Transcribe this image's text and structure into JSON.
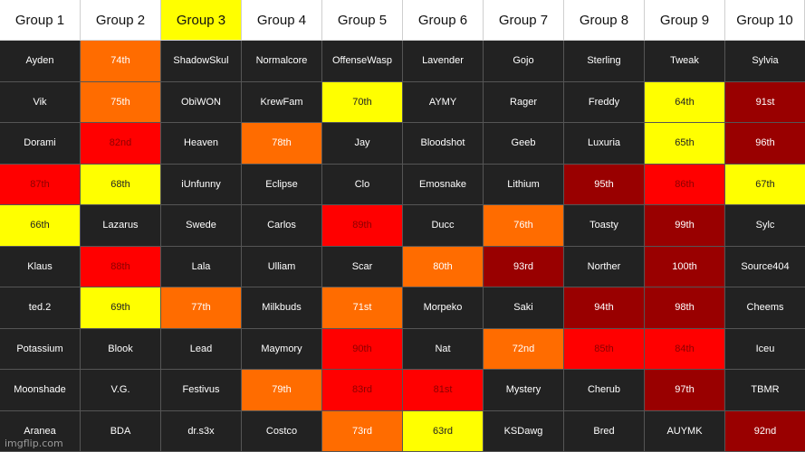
{
  "colors": {
    "header_bg": "#ffffff",
    "header_highlight": "#ffff00",
    "cell_default": "#222222",
    "orange": "#ff6c00",
    "red": "#ff0000",
    "dark_red": "#990000",
    "yellow": "#ffff00"
  },
  "headers": [
    {
      "label": "Group 1",
      "highlight": false
    },
    {
      "label": "Group 2",
      "highlight": false
    },
    {
      "label": "Group 3",
      "highlight": true
    },
    {
      "label": "Group 4",
      "highlight": false
    },
    {
      "label": "Group 5",
      "highlight": false
    },
    {
      "label": "Group 6",
      "highlight": false
    },
    {
      "label": "Group 7",
      "highlight": false
    },
    {
      "label": "Group 8",
      "highlight": false
    },
    {
      "label": "Group 9",
      "highlight": false
    },
    {
      "label": "Group 10",
      "highlight": false
    }
  ],
  "rows": [
    [
      {
        "text": "Ayden",
        "color": "dark"
      },
      {
        "text": "74th",
        "color": "orange"
      },
      {
        "text": "ShadowSkul",
        "color": "dark"
      },
      {
        "text": "Normalcore",
        "color": "dark"
      },
      {
        "text": "OffenseWasp",
        "color": "dark"
      },
      {
        "text": "Lavender",
        "color": "dark"
      },
      {
        "text": "Gojo",
        "color": "dark"
      },
      {
        "text": "Sterling",
        "color": "dark"
      },
      {
        "text": "Tweak",
        "color": "dark"
      },
      {
        "text": "Sylvia",
        "color": "dark"
      }
    ],
    [
      {
        "text": "Vik",
        "color": "dark"
      },
      {
        "text": "75th",
        "color": "orange"
      },
      {
        "text": "ObiWON",
        "color": "dark"
      },
      {
        "text": "KrewFam",
        "color": "dark"
      },
      {
        "text": "70th",
        "color": "yellow"
      },
      {
        "text": "AYMY",
        "color": "dark"
      },
      {
        "text": "Rager",
        "color": "dark"
      },
      {
        "text": "Freddy",
        "color": "dark"
      },
      {
        "text": "64th",
        "color": "yellow"
      },
      {
        "text": "91st",
        "color": "darkred"
      }
    ],
    [
      {
        "text": "Dorami",
        "color": "dark"
      },
      {
        "text": "82nd",
        "color": "red"
      },
      {
        "text": "Heaven",
        "color": "dark"
      },
      {
        "text": "78th",
        "color": "orange"
      },
      {
        "text": "Jay",
        "color": "dark"
      },
      {
        "text": "Bloodshot",
        "color": "dark"
      },
      {
        "text": "Geeb",
        "color": "dark"
      },
      {
        "text": "Luxuria",
        "color": "dark"
      },
      {
        "text": "65th",
        "color": "yellow"
      },
      {
        "text": "96th",
        "color": "darkred"
      }
    ],
    [
      {
        "text": "87th",
        "color": "red"
      },
      {
        "text": "68th",
        "color": "yellow"
      },
      {
        "text": "iUnfunny",
        "color": "dark"
      },
      {
        "text": "Eclipse",
        "color": "dark"
      },
      {
        "text": "Clo",
        "color": "dark"
      },
      {
        "text": "Emosnake",
        "color": "dark"
      },
      {
        "text": "Lithium",
        "color": "dark"
      },
      {
        "text": "95th",
        "color": "darkred"
      },
      {
        "text": "86th",
        "color": "red"
      },
      {
        "text": "67th",
        "color": "yellow"
      }
    ],
    [
      {
        "text": "66th",
        "color": "yellow"
      },
      {
        "text": "Lazarus",
        "color": "dark"
      },
      {
        "text": "Swede",
        "color": "dark"
      },
      {
        "text": "Carlos",
        "color": "dark"
      },
      {
        "text": "89th",
        "color": "red"
      },
      {
        "text": "Ducc",
        "color": "dark"
      },
      {
        "text": "76th",
        "color": "orange"
      },
      {
        "text": "Toasty",
        "color": "dark"
      },
      {
        "text": "99th",
        "color": "darkred"
      },
      {
        "text": "Sylc",
        "color": "dark"
      }
    ],
    [
      {
        "text": "Klaus",
        "color": "dark"
      },
      {
        "text": "88th",
        "color": "red"
      },
      {
        "text": "Lala",
        "color": "dark"
      },
      {
        "text": "Ulliam",
        "color": "dark"
      },
      {
        "text": "Scar",
        "color": "dark"
      },
      {
        "text": "80th",
        "color": "orange"
      },
      {
        "text": "93rd",
        "color": "darkred"
      },
      {
        "text": "Norther",
        "color": "dark"
      },
      {
        "text": "100th",
        "color": "darkred"
      },
      {
        "text": "Source404",
        "color": "dark"
      }
    ],
    [
      {
        "text": "ted.2",
        "color": "dark"
      },
      {
        "text": "69th",
        "color": "yellow"
      },
      {
        "text": "77th",
        "color": "orange"
      },
      {
        "text": "Milkbuds",
        "color": "dark"
      },
      {
        "text": "71st",
        "color": "orange"
      },
      {
        "text": "Morpeko",
        "color": "dark"
      },
      {
        "text": "Saki",
        "color": "dark"
      },
      {
        "text": "94th",
        "color": "darkred"
      },
      {
        "text": "98th",
        "color": "darkred"
      },
      {
        "text": "Cheems",
        "color": "dark"
      }
    ],
    [
      {
        "text": "Potassium",
        "color": "dark"
      },
      {
        "text": "Blook",
        "color": "dark"
      },
      {
        "text": "Lead",
        "color": "dark"
      },
      {
        "text": "Maymory",
        "color": "dark"
      },
      {
        "text": "90th",
        "color": "red"
      },
      {
        "text": "Nat",
        "color": "dark"
      },
      {
        "text": "72nd",
        "color": "orange"
      },
      {
        "text": "85th",
        "color": "red"
      },
      {
        "text": "84th",
        "color": "red"
      },
      {
        "text": "Iceu",
        "color": "dark"
      }
    ],
    [
      {
        "text": "Moonshade",
        "color": "dark"
      },
      {
        "text": "V.G.",
        "color": "dark"
      },
      {
        "text": "Festivus",
        "color": "dark"
      },
      {
        "text": "79th",
        "color": "orange"
      },
      {
        "text": "83rd",
        "color": "red"
      },
      {
        "text": "81st",
        "color": "red"
      },
      {
        "text": "Mystery",
        "color": "dark"
      },
      {
        "text": "Cherub",
        "color": "dark"
      },
      {
        "text": "97th",
        "color": "darkred"
      },
      {
        "text": "TBMR",
        "color": "dark"
      }
    ],
    [
      {
        "text": "Aranea",
        "color": "dark"
      },
      {
        "text": "BDA",
        "color": "dark"
      },
      {
        "text": "dr.s3x",
        "color": "dark"
      },
      {
        "text": "Costco",
        "color": "dark"
      },
      {
        "text": "73rd",
        "color": "orange"
      },
      {
        "text": "63rd",
        "color": "yellow"
      },
      {
        "text": "KSDawg",
        "color": "dark"
      },
      {
        "text": "Bred",
        "color": "dark"
      },
      {
        "text": "AUYMK",
        "color": "dark"
      },
      {
        "text": "92nd",
        "color": "darkred"
      }
    ]
  ],
  "watermark": "imgflip.com"
}
